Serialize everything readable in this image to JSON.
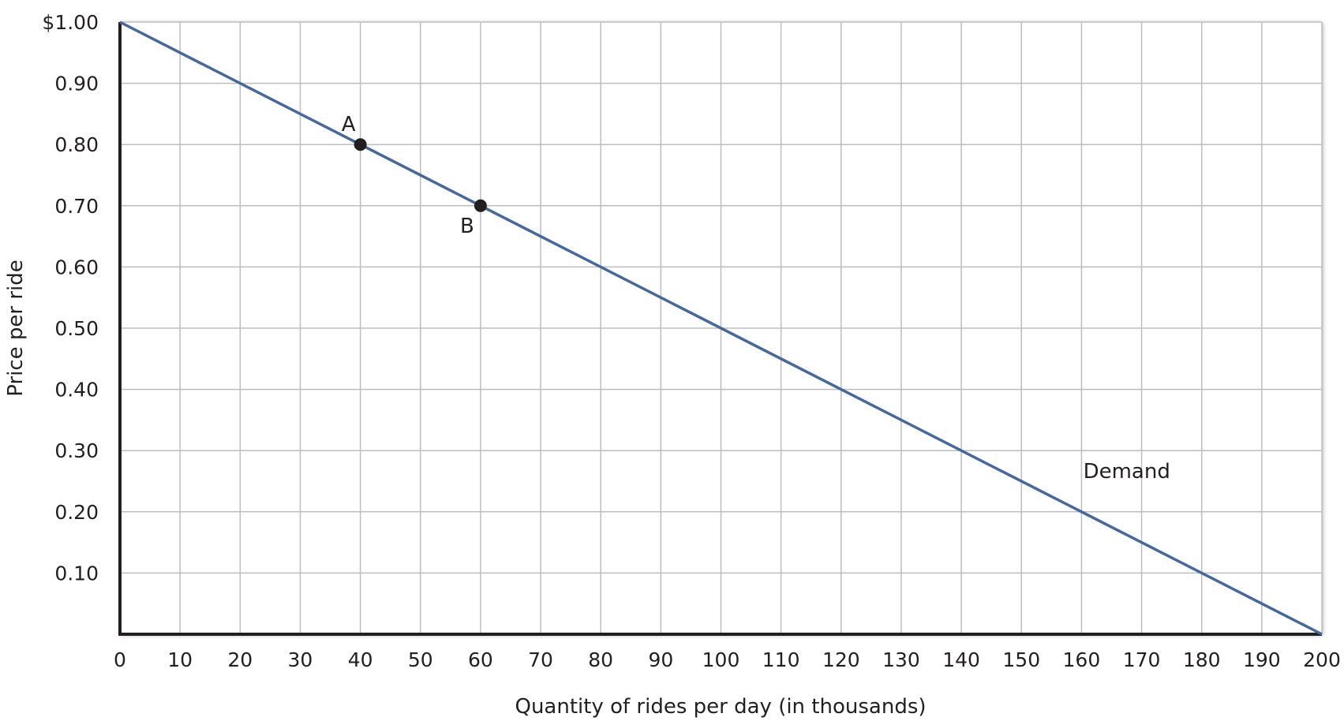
{
  "chart_data": {
    "type": "line",
    "xlabel": "Quantity of rides per day (in thousands)",
    "ylabel": "Price per ride",
    "xlim": [
      0,
      200
    ],
    "ylim": [
      0,
      1.0
    ],
    "x_ticks": [
      0,
      10,
      20,
      30,
      40,
      50,
      60,
      70,
      80,
      90,
      100,
      110,
      120,
      130,
      140,
      150,
      160,
      170,
      180,
      190,
      200
    ],
    "x_tick_labels": [
      "0",
      "10",
      "20",
      "30",
      "40",
      "50",
      "60",
      "70",
      "80",
      "90",
      "100",
      "110",
      "120",
      "130",
      "140",
      "150",
      "160",
      "170",
      "180",
      "190",
      "200"
    ],
    "y_ticks": [
      0.1,
      0.2,
      0.3,
      0.4,
      0.5,
      0.6,
      0.7,
      0.8,
      0.9,
      1.0
    ],
    "y_tick_labels": [
      "0.10",
      "0.20",
      "0.30",
      "0.40",
      "0.50",
      "0.60",
      "0.70",
      "0.80",
      "0.90",
      "$1.00"
    ],
    "grid": true,
    "series": [
      {
        "name": "Demand",
        "color": "#46689a",
        "x": [
          0,
          200
        ],
        "y": [
          1.0,
          0
        ]
      }
    ],
    "points": [
      {
        "label": "A",
        "x": 40,
        "y": 0.8,
        "label_side": "above"
      },
      {
        "label": "B",
        "x": 60,
        "y": 0.7,
        "label_side": "below"
      }
    ],
    "annotations": [
      {
        "text": "Demand",
        "x": 167,
        "y": 0.25
      }
    ],
    "colors": {
      "grid": "#bdbdbd",
      "axis": "#231f20",
      "point": "#231f20"
    }
  }
}
